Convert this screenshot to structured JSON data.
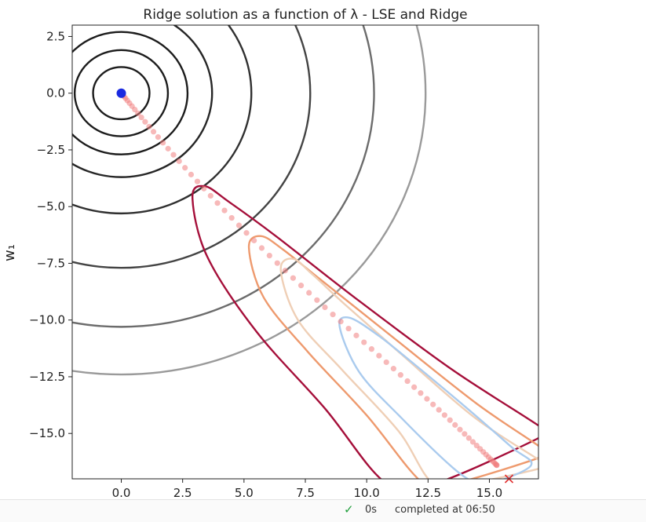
{
  "chart_data": {
    "type": "contour",
    "title": "Ridge solution as a function of λ - LSE and Ridge",
    "xlabel": "",
    "ylabel": "w₁",
    "xlim": [
      -2,
      17
    ],
    "ylim": [
      -17,
      3
    ],
    "x_ticks": [
      "0.0",
      "2.5",
      "5.0",
      "7.5",
      "10.0",
      "12.5",
      "15.0"
    ],
    "x_tick_values": [
      0,
      2.5,
      5,
      7.5,
      10,
      12.5,
      15
    ],
    "y_ticks": [
      "2.5",
      "0.0",
      "−2.5",
      "−5.0",
      "−7.5",
      "−10.0",
      "−12.5",
      "−15.0"
    ],
    "y_tick_values": [
      2.5,
      0,
      -2.5,
      -5,
      -7.5,
      -10,
      -12.5,
      -15
    ],
    "ridge_contours": {
      "center": [
        0,
        0
      ],
      "radii": [
        1.15,
        1.9,
        2.7,
        3.7,
        5.3,
        7.7,
        10.3,
        12.4
      ],
      "colors": [
        "#1c1c1c",
        "#1c1c1c",
        "#1c1c1c",
        "#262626",
        "#303030",
        "#444444",
        "#6c6c6c",
        "#9a9a9a"
      ]
    },
    "lse_contours": [
      {
        "color": "#a50f3a",
        "points": [
          [
            3.4,
            -4.1
          ],
          [
            2.9,
            -4.6
          ],
          [
            3.5,
            -7.2
          ],
          [
            5.5,
            -10.5
          ],
          [
            8.3,
            -13.9
          ],
          [
            10.8,
            -17.2
          ],
          [
            12.8,
            -17.2
          ],
          [
            17.2,
            -15.1
          ],
          [
            17.2,
            -14.8
          ],
          [
            13.5,
            -12.2
          ],
          [
            9.5,
            -9.0
          ],
          [
            6.3,
            -6.3
          ],
          [
            4.4,
            -4.8
          ],
          [
            3.4,
            -4.1
          ]
        ]
      },
      {
        "color": "#ee9a6e",
        "points": [
          [
            5.7,
            -6.3
          ],
          [
            5.2,
            -6.8
          ],
          [
            5.8,
            -9.0
          ],
          [
            7.6,
            -11.4
          ],
          [
            10.0,
            -14.2
          ],
          [
            12.3,
            -17.2
          ],
          [
            13.6,
            -17.2
          ],
          [
            17.2,
            -16.0
          ],
          [
            17.2,
            -15.7
          ],
          [
            14.5,
            -13.7
          ],
          [
            11.0,
            -10.7
          ],
          [
            8.1,
            -8.2
          ],
          [
            6.6,
            -6.9
          ],
          [
            5.7,
            -6.3
          ]
        ]
      },
      {
        "color": "#efcfb6",
        "points": [
          [
            7.0,
            -7.3
          ],
          [
            6.5,
            -7.8
          ],
          [
            7.2,
            -10.0
          ],
          [
            9.0,
            -12.2
          ],
          [
            11.3,
            -14.9
          ],
          [
            12.7,
            -17.2
          ],
          [
            14.2,
            -17.2
          ],
          [
            17.2,
            -16.5
          ],
          [
            17.2,
            -16.3
          ],
          [
            14.4,
            -14.3
          ],
          [
            11.3,
            -11.4
          ],
          [
            9.1,
            -9.3
          ],
          [
            7.8,
            -8.0
          ],
          [
            7.0,
            -7.3
          ]
        ]
      },
      {
        "color": "#aacbee",
        "points": [
          [
            9.3,
            -9.9
          ],
          [
            8.9,
            -10.3
          ],
          [
            9.7,
            -12.3
          ],
          [
            11.4,
            -14.3
          ],
          [
            13.5,
            -16.5
          ],
          [
            14.5,
            -17.2
          ],
          [
            15.1,
            -17.2
          ],
          [
            16.7,
            -16.4
          ],
          [
            15.9,
            -15.6
          ],
          [
            14.1,
            -13.9
          ],
          [
            12.0,
            -12.0
          ],
          [
            10.5,
            -10.7
          ],
          [
            9.3,
            -9.9
          ]
        ]
      }
    ],
    "path_start": [
      0,
      0
    ],
    "path_end": [
      15.3,
      -16.4
    ],
    "path_points": 75,
    "path_color": "#f08080",
    "lse_point": [
      0,
      0
    ],
    "lse_point_color": "#1a2ae0",
    "minimum_marker": [
      15.8,
      -17.0
    ],
    "minimum_marker_color": "#e03030"
  },
  "status": {
    "duration": "0s",
    "completed": "completed at 06:50"
  }
}
